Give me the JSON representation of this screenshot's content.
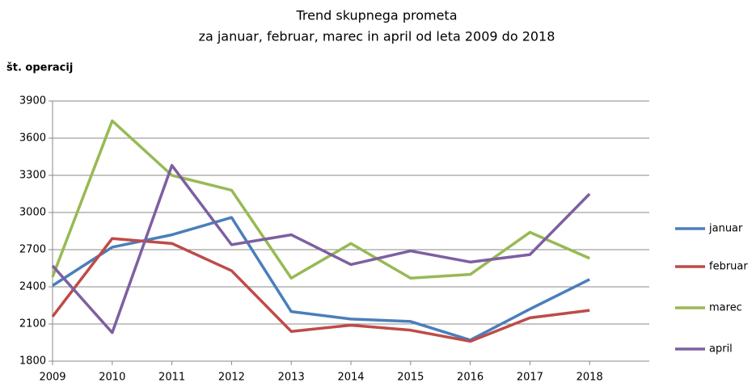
{
  "chart_data": {
    "type": "line",
    "title": "Trend skupnega prometa",
    "subtitle": "za januar, februar, marec in april od leta 2009 do 2018",
    "y_label": "št. operacij",
    "x": [
      2009,
      2010,
      2011,
      2012,
      2013,
      2014,
      2015,
      2016,
      2017,
      2018
    ],
    "xlim": [
      2009,
      2019
    ],
    "xticks": [
      2009,
      2010,
      2011,
      2012,
      2013,
      2014,
      2015,
      2016,
      2017,
      2018
    ],
    "ylim": [
      1800,
      3900
    ],
    "yticks": [
      1800,
      2100,
      2400,
      2700,
      3000,
      3300,
      3600,
      3900
    ],
    "grid": true,
    "legend": "right",
    "series": [
      {
        "name": "januar",
        "color": "#4a7ebb",
        "values": [
          2410,
          2720,
          2820,
          2960,
          2200,
          2140,
          2120,
          1970,
          2220,
          2460
        ]
      },
      {
        "name": "februar",
        "color": "#be4b48",
        "values": [
          2160,
          2790,
          2750,
          2530,
          2040,
          2090,
          2050,
          1960,
          2150,
          2210
        ]
      },
      {
        "name": "marec",
        "color": "#98b954",
        "values": [
          2480,
          3740,
          3300,
          3180,
          2470,
          2750,
          2470,
          2500,
          2840,
          2630
        ]
      },
      {
        "name": "april",
        "color": "#7d60a0",
        "values": [
          2570,
          2030,
          3380,
          2740,
          2820,
          2580,
          2690,
          2600,
          2660,
          3150
        ]
      }
    ]
  }
}
